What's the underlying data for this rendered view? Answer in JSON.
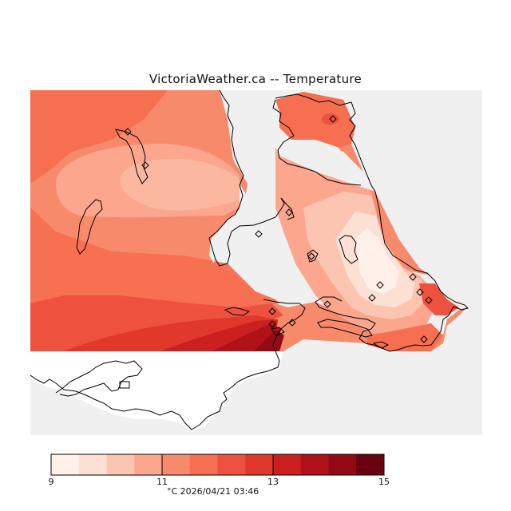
{
  "title": "VictoriaWeather.ca -- Temperature",
  "units": "°C",
  "timestamp": "2026/04/21 03:46",
  "footer": "°C  2026/04/21 03:46",
  "colorbar": {
    "min": 9,
    "max": 15,
    "step": 0.5,
    "tick_labels": [
      "9",
      "11",
      "13",
      "15"
    ],
    "colors": [
      "#fff0ea",
      "#fde0d4",
      "#fcc5b1",
      "#fba68d",
      "#f88a6c",
      "#f56f50",
      "#ee523e",
      "#e0382b",
      "#ca201f",
      "#b11219",
      "#940a14",
      "#6b0010"
    ]
  },
  "colors": {
    "land_masked": "#f0f0f0",
    "coastline": "#000000",
    "station_marker": "#000000"
  },
  "stations_count": 16
}
